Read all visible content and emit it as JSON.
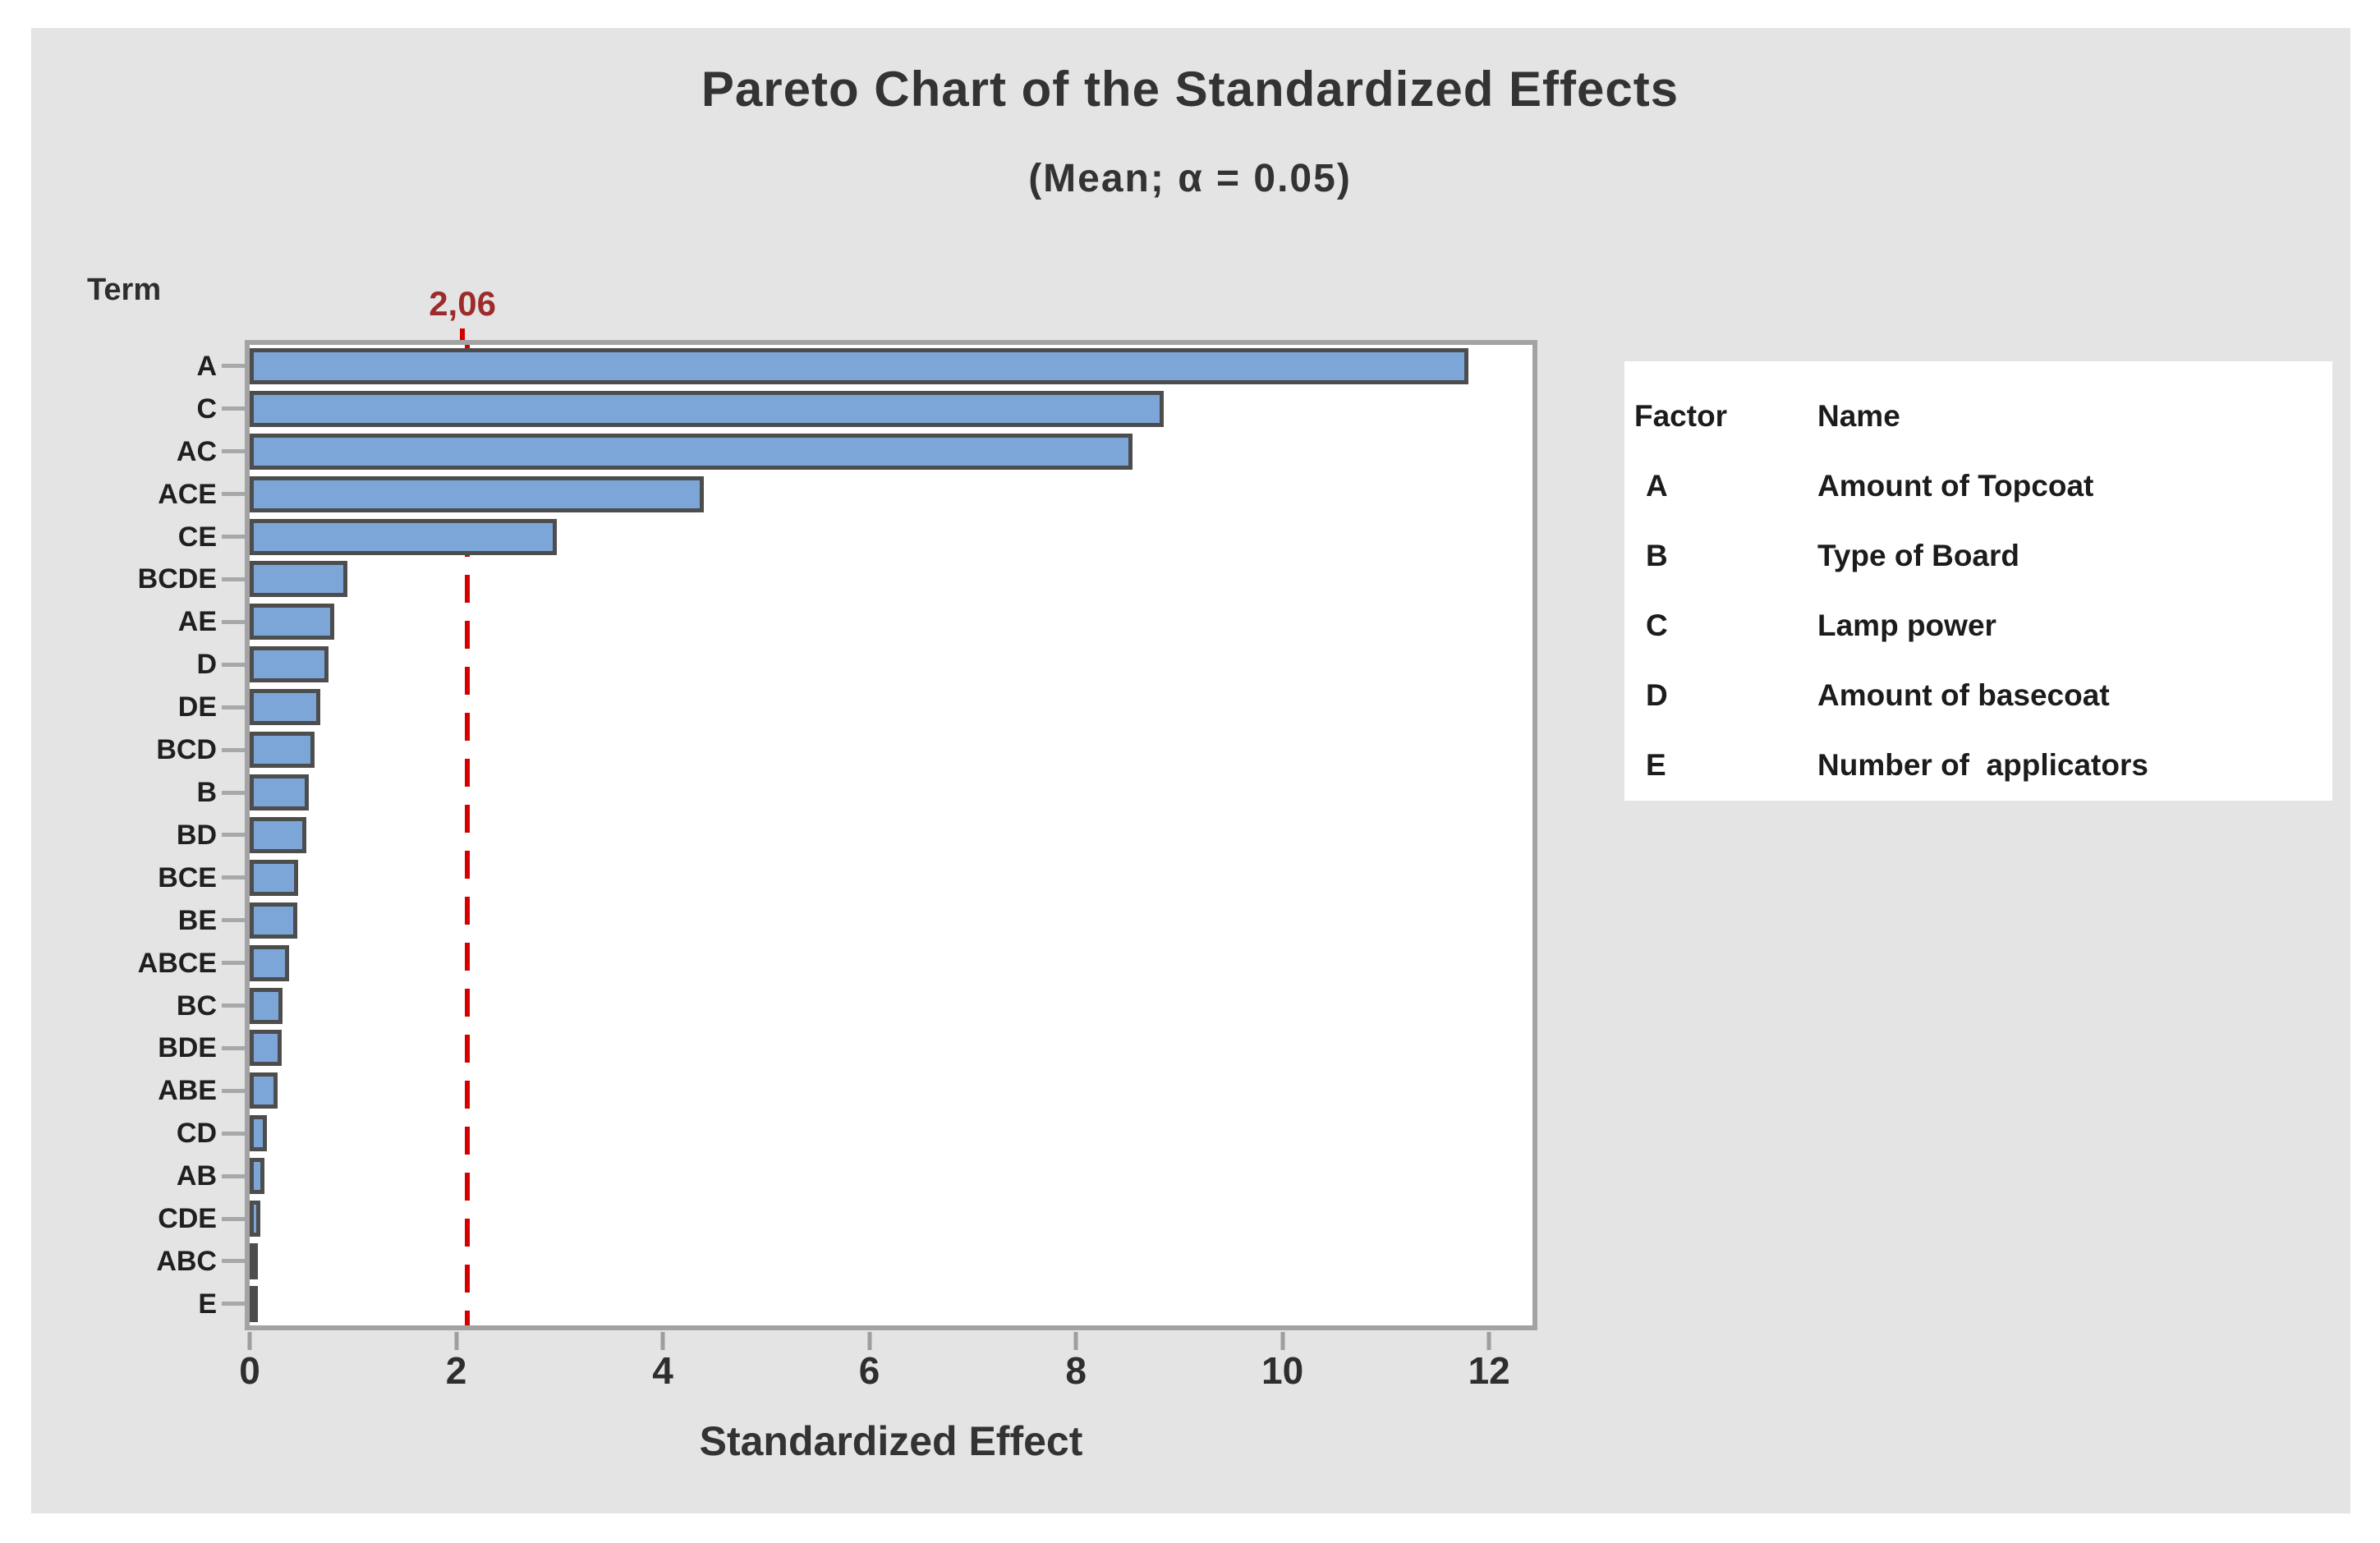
{
  "window": {
    "background": "#ffffff",
    "panel_background": "#e4e4e4"
  },
  "chart_data": {
    "type": "bar",
    "orientation": "horizontal",
    "title": "Pareto Chart of the Standardized Effects",
    "subtitle": "(Mean; α = 0.05)",
    "xlabel": "Standardized Effect",
    "term_axis_label": "Term",
    "categories": [
      "A",
      "C",
      "AC",
      "ACE",
      "CE",
      "BCDE",
      "AE",
      "D",
      "DE",
      "BCD",
      "B",
      "BD",
      "BCE",
      "BE",
      "ABCE",
      "BC",
      "BDE",
      "ABE",
      "CD",
      "AB",
      "CDE",
      "ABC",
      "E"
    ],
    "values": [
      11.8,
      8.85,
      8.55,
      4.4,
      2.97,
      0.95,
      0.82,
      0.76,
      0.68,
      0.63,
      0.57,
      0.55,
      0.47,
      0.46,
      0.38,
      0.32,
      0.31,
      0.27,
      0.17,
      0.14,
      0.1,
      0.06,
      0.04
    ],
    "xticks": [
      0,
      2,
      4,
      6,
      8,
      10,
      12
    ],
    "xlim": [
      0,
      12.42
    ],
    "grid": "off",
    "bar_color": "#7da6d8",
    "bar_border_color": "#4d4d4d",
    "axis_color": "#a3a3a3",
    "reference_line": {
      "value": 2.06,
      "label": "2,06",
      "line_color": "#d40000",
      "label_color": "#9e2b2b",
      "style": "dashed"
    },
    "legend_position": "right"
  },
  "legend": {
    "headers": [
      "Factor",
      "Name"
    ],
    "rows": [
      [
        "A",
        "Amount of Topcoat"
      ],
      [
        "B",
        "Type of Board"
      ],
      [
        "C",
        "Lamp power"
      ],
      [
        "D",
        "Amount of basecoat"
      ],
      [
        "E",
        "Number of  applicators"
      ]
    ]
  }
}
